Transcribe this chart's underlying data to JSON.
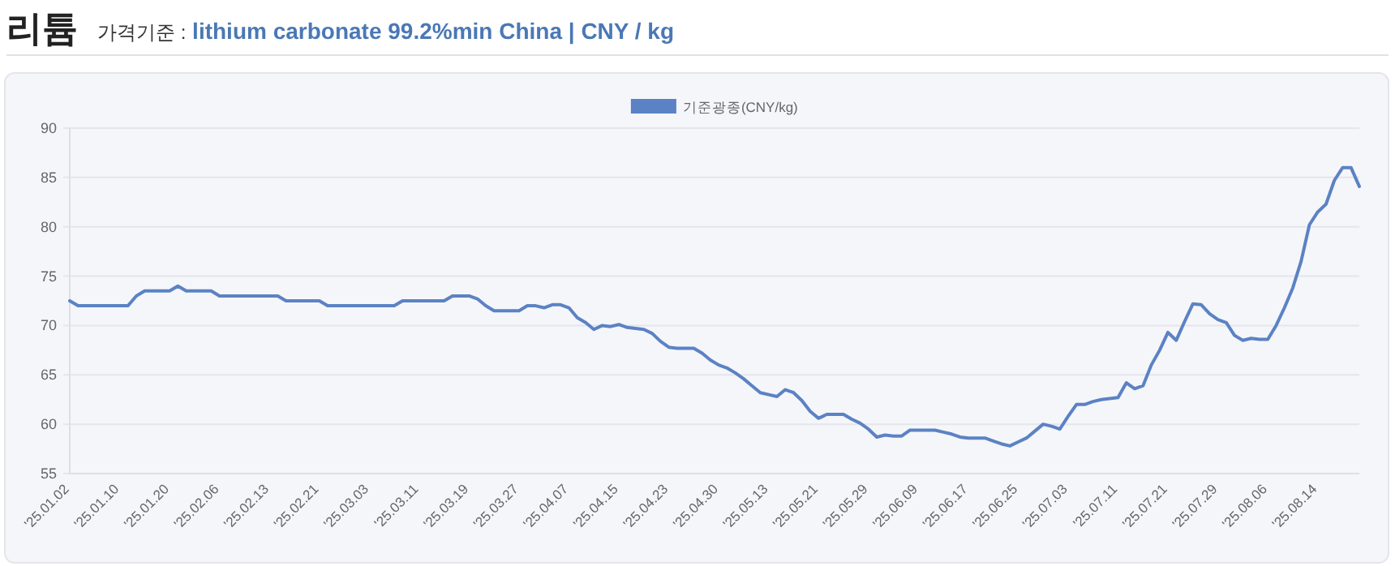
{
  "chart_data": {
    "type": "line",
    "title": "리튬",
    "subtitle": "가격기준 : lithium carbonate 99.2%min China | CNY / kg",
    "categories": [
      "'25.01.02",
      null,
      null,
      null,
      null,
      null,
      "'25.01.10",
      null,
      null,
      null,
      null,
      null,
      "'25.01.20",
      null,
      null,
      null,
      null,
      null,
      "'25.02.06",
      null,
      null,
      null,
      null,
      null,
      "'25.02.13",
      null,
      null,
      null,
      null,
      null,
      "'25.02.21",
      null,
      null,
      null,
      null,
      null,
      "'25.03.03",
      null,
      null,
      null,
      null,
      null,
      "'25.03.11",
      null,
      null,
      null,
      null,
      null,
      "'25.03.19",
      null,
      null,
      null,
      null,
      null,
      "'25.03.27",
      null,
      null,
      null,
      null,
      null,
      "'25.04.07",
      null,
      null,
      null,
      null,
      null,
      "'25.04.15",
      null,
      null,
      null,
      null,
      null,
      "'25.04.23",
      null,
      null,
      null,
      null,
      null,
      "'25.04.30",
      null,
      null,
      null,
      null,
      null,
      "'25.05.13",
      null,
      null,
      null,
      null,
      null,
      "'25.05.21",
      null,
      null,
      null,
      null,
      null,
      "'25.05.29",
      null,
      null,
      null,
      null,
      null,
      "'25.06.09",
      null,
      null,
      null,
      null,
      null,
      "'25.06.17",
      null,
      null,
      null,
      null,
      null,
      "'25.06.25",
      null,
      null,
      null,
      null,
      null,
      "'25.07.03",
      null,
      null,
      null,
      null,
      null,
      "'25.07.11",
      null,
      null,
      null,
      null,
      null,
      "'25.07.21",
      null,
      null,
      null,
      null,
      null,
      "'25.07.29",
      null,
      null,
      null,
      null,
      null,
      "'25.08.06",
      null,
      null,
      null,
      null,
      null,
      "'25.08.14",
      null,
      null,
      null,
      null,
      null
    ],
    "series": [
      {
        "name": "기준광종(CNY/kg)",
        "color": "#5b82c4",
        "values": [
          72.5,
          72,
          72,
          72,
          72,
          72,
          72,
          72,
          73,
          73.5,
          73.5,
          73.5,
          73.5,
          74,
          73.5,
          73.5,
          73.5,
          73.5,
          73,
          73,
          73,
          73,
          73,
          73,
          73,
          73,
          72.5,
          72.5,
          72.5,
          72.5,
          72.5,
          72,
          72,
          72,
          72,
          72,
          72,
          72,
          72,
          72,
          72.5,
          72.5,
          72.5,
          72.5,
          72.5,
          72.5,
          73,
          73,
          73,
          72.7,
          72,
          71.5,
          71.5,
          71.5,
          71.5,
          72,
          72,
          71.8,
          72.1,
          72.1,
          71.8,
          70.8,
          70.3,
          69.6,
          70,
          69.9,
          70.1,
          69.8,
          69.7,
          69.6,
          69.2,
          68.4,
          67.8,
          67.7,
          67.7,
          67.7,
          67.2,
          66.5,
          66,
          65.7,
          65.2,
          64.6,
          63.9,
          63.2,
          63,
          62.8,
          63.5,
          63.2,
          62.4,
          61.3,
          60.6,
          61,
          61,
          61,
          60.5,
          60.1,
          59.5,
          58.7,
          58.9,
          58.8,
          58.8,
          59.4,
          59.4,
          59.4,
          59.4,
          59.2,
          59,
          58.7,
          58.6,
          58.6,
          58.6,
          58.3,
          58,
          57.8,
          58.2,
          58.6,
          59.3,
          60,
          59.8,
          59.5,
          60.8,
          62,
          62,
          62.3,
          62.5,
          62.6,
          62.7,
          64.2,
          63.6,
          63.9,
          66,
          67.5,
          69.3,
          68.5,
          70.4,
          72.2,
          72.1,
          71.2,
          70.6,
          70.3,
          69,
          68.5,
          68.7,
          68.6,
          68.6,
          70,
          71.8,
          73.8,
          76.5,
          80.2,
          81.5,
          82.3,
          84.7,
          86,
          86,
          84.1
        ]
      }
    ],
    "ylim": [
      55,
      90
    ],
    "yticks": [
      55,
      60,
      65,
      70,
      75,
      80,
      85,
      90
    ],
    "grid": "y",
    "legend": "top",
    "marker": "none",
    "line_style": "solid"
  }
}
